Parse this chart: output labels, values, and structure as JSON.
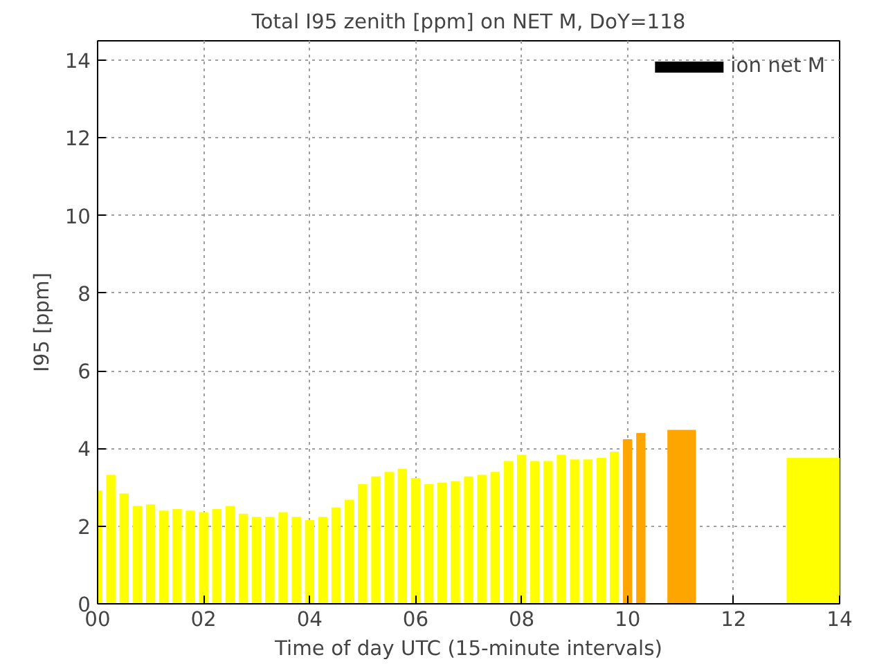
{
  "chart_data": {
    "type": "bar",
    "title": "Total I95 zenith [ppm] on NET M, DoY=118",
    "xlabel": "Time of day UTC (15-minute intervals)",
    "ylabel": "I95 [ppm]",
    "series": [
      {
        "name": "ion net M",
        "color": "#000000",
        "x": [
          0,
          0.25,
          0.5,
          0.75,
          1,
          1.25,
          1.5,
          1.75,
          2,
          2.25,
          2.5,
          2.75,
          3,
          3.25,
          3.5,
          3.75,
          4,
          4.25,
          4.5,
          4.75,
          5,
          5.25,
          5.5,
          5.75,
          6,
          6.25,
          6.5,
          6.75,
          7,
          7.25,
          7.5,
          7.75,
          8,
          8.25,
          8.5,
          8.75,
          9,
          9.25,
          9.5,
          9.75,
          10,
          10.25,
          11.02,
          13.5
        ],
        "values": [
          2.92,
          3.32,
          2.84,
          2.52,
          2.56,
          2.4,
          2.44,
          2.4,
          2.36,
          2.44,
          2.52,
          2.32,
          2.24,
          2.24,
          2.36,
          2.24,
          2.16,
          2.24,
          2.48,
          2.68,
          3.08,
          3.28,
          3.4,
          3.48,
          3.24,
          3.08,
          3.12,
          3.16,
          3.28,
          3.32,
          3.4,
          3.68,
          3.84,
          3.68,
          3.68,
          3.84,
          3.72,
          3.72,
          3.76,
          3.92,
          4.24,
          4.4,
          4.48,
          3.76
        ],
        "colors": [
          "#ffff00",
          "#ffff00",
          "#ffff00",
          "#ffff00",
          "#ffff00",
          "#ffff00",
          "#ffff00",
          "#ffff00",
          "#ffff00",
          "#ffff00",
          "#ffff00",
          "#ffff00",
          "#ffff00",
          "#ffff00",
          "#ffff00",
          "#ffff00",
          "#ffff00",
          "#ffff00",
          "#ffff00",
          "#ffff00",
          "#ffff00",
          "#ffff00",
          "#ffff00",
          "#ffff00",
          "#ffff00",
          "#ffff00",
          "#ffff00",
          "#ffff00",
          "#ffff00",
          "#ffff00",
          "#ffff00",
          "#ffff00",
          "#ffff00",
          "#ffff00",
          "#ffff00",
          "#ffff00",
          "#ffff00",
          "#ffff00",
          "#ffff00",
          "#ffff00",
          "#ffa500",
          "#ffa500",
          "#ffa500",
          "#ffff00"
        ]
      }
    ],
    "xlim": [
      0,
      14
    ],
    "xticks": [
      {
        "value": 0,
        "label": "00"
      },
      {
        "value": 2,
        "label": "02"
      },
      {
        "value": 4,
        "label": "04"
      },
      {
        "value": 6,
        "label": "06"
      },
      {
        "value": 8,
        "label": "08"
      },
      {
        "value": 10,
        "label": "10"
      },
      {
        "value": 12,
        "label": "12"
      },
      {
        "value": 14,
        "label": "14"
      }
    ],
    "ylim": [
      0,
      14.5
    ],
    "yticks": [
      0,
      2,
      4,
      6,
      8,
      10,
      12,
      14
    ],
    "grid": true,
    "legend": "top right"
  }
}
